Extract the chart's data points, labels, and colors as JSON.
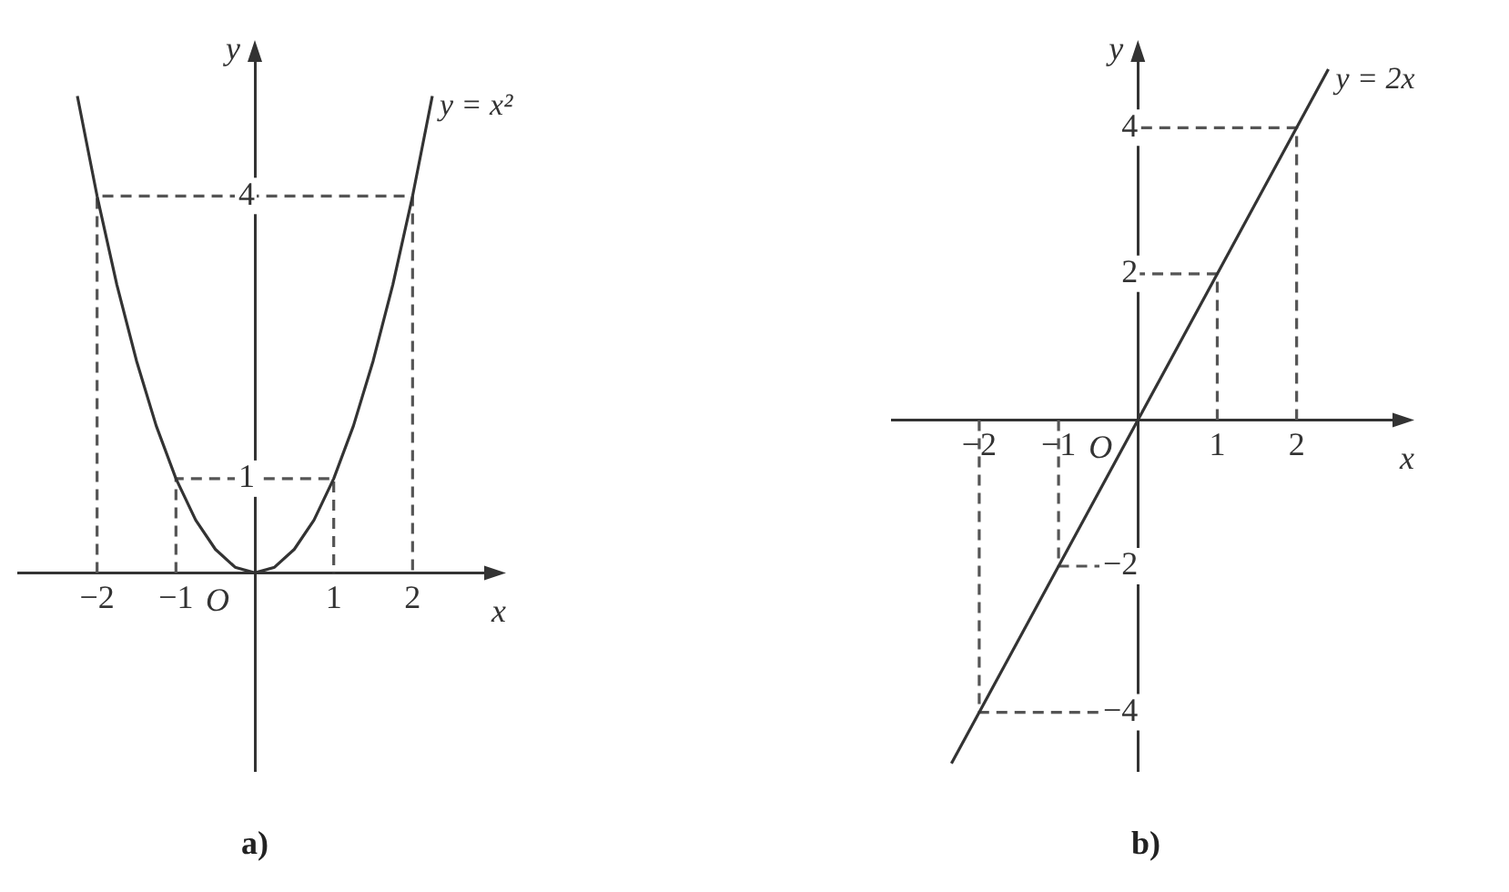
{
  "chart_data": [
    {
      "type": "line",
      "title": "a)",
      "xlabel": "x",
      "ylabel": "y",
      "xlim": [
        -3,
        3
      ],
      "ylim": [
        -2.1,
        5.5
      ],
      "xticks": [
        -2,
        -1,
        1,
        2
      ],
      "yticks": [
        1,
        4
      ],
      "grid": false,
      "legend": false,
      "marker": "none",
      "annotations": [
        "O"
      ],
      "series": [
        {
          "name": "y = x²",
          "color": "#333333",
          "x": [
            -2.25,
            -2,
            -1.75,
            -1.5,
            -1.25,
            -1,
            -0.75,
            -0.5,
            -0.25,
            0,
            0.25,
            0.5,
            0.75,
            1,
            1.25,
            1.5,
            1.75,
            2,
            2.25
          ],
          "values": [
            5.06,
            4,
            3.06,
            2.25,
            1.56,
            1,
            0.56,
            0.25,
            0.06,
            0,
            0.06,
            0.25,
            0.56,
            1,
            1.56,
            2.25,
            3.06,
            4,
            5.06
          ]
        },
        {
          "color": "#555555",
          "line_style": "dashed",
          "x": [
            -2,
            -2,
            2,
            2
          ],
          "values": [
            0,
            4,
            4,
            0
          ]
        },
        {
          "color": "#555555",
          "line_style": "dashed",
          "x": [
            -1,
            -1,
            1,
            1
          ],
          "values": [
            0,
            1,
            1,
            0
          ]
        }
      ]
    },
    {
      "type": "line",
      "title": "b)",
      "xlabel": "x",
      "ylabel": "y",
      "xlim": [
        -3.1,
        3.3
      ],
      "ylim": [
        -4.8,
        5
      ],
      "xticks": [
        -2,
        -1,
        1,
        2
      ],
      "yticks": [
        -4,
        -2,
        2,
        4
      ],
      "grid": false,
      "legend": false,
      "marker": "none",
      "annotations": [
        "O"
      ],
      "series": [
        {
          "name": "y = 2x",
          "color": "#333333",
          "x": [
            -2.35,
            2.4
          ],
          "values": [
            -4.7,
            4.8
          ]
        },
        {
          "color": "#555555",
          "line_style": "dashed",
          "x": [
            1,
            1,
            0
          ],
          "values": [
            0,
            2,
            2
          ]
        },
        {
          "color": "#555555",
          "line_style": "dashed",
          "x": [
            2,
            2,
            0
          ],
          "values": [
            0,
            4,
            4
          ]
        },
        {
          "color": "#555555",
          "line_style": "dashed",
          "x": [
            -1,
            -1,
            0
          ],
          "values": [
            0,
            -2,
            -2
          ]
        },
        {
          "color": "#555555",
          "line_style": "dashed",
          "x": [
            -2,
            -2,
            0
          ],
          "values": [
            0,
            -4,
            -4
          ]
        }
      ]
    }
  ]
}
